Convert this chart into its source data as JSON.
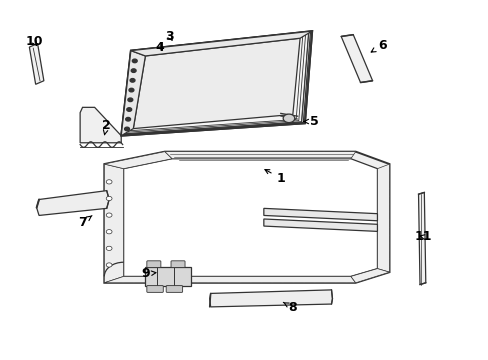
{
  "background_color": "#ffffff",
  "line_color": "#333333",
  "label_color": "#000000",
  "fig_width": 4.89,
  "fig_height": 3.6,
  "dpi": 100,
  "label_arrows": {
    "1": [
      0.575,
      0.495,
      0.535,
      0.465
    ],
    "2": [
      0.215,
      0.345,
      0.21,
      0.375
    ],
    "3": [
      0.345,
      0.095,
      0.355,
      0.115
    ],
    "4": [
      0.325,
      0.125,
      0.335,
      0.14
    ],
    "5": [
      0.645,
      0.335,
      0.615,
      0.335
    ],
    "6": [
      0.785,
      0.12,
      0.755,
      0.145
    ],
    "7": [
      0.165,
      0.62,
      0.185,
      0.6
    ],
    "8": [
      0.6,
      0.86,
      0.58,
      0.845
    ],
    "9": [
      0.295,
      0.765,
      0.325,
      0.76
    ],
    "10": [
      0.065,
      0.11,
      0.075,
      0.13
    ],
    "11": [
      0.87,
      0.66,
      0.855,
      0.655
    ]
  }
}
